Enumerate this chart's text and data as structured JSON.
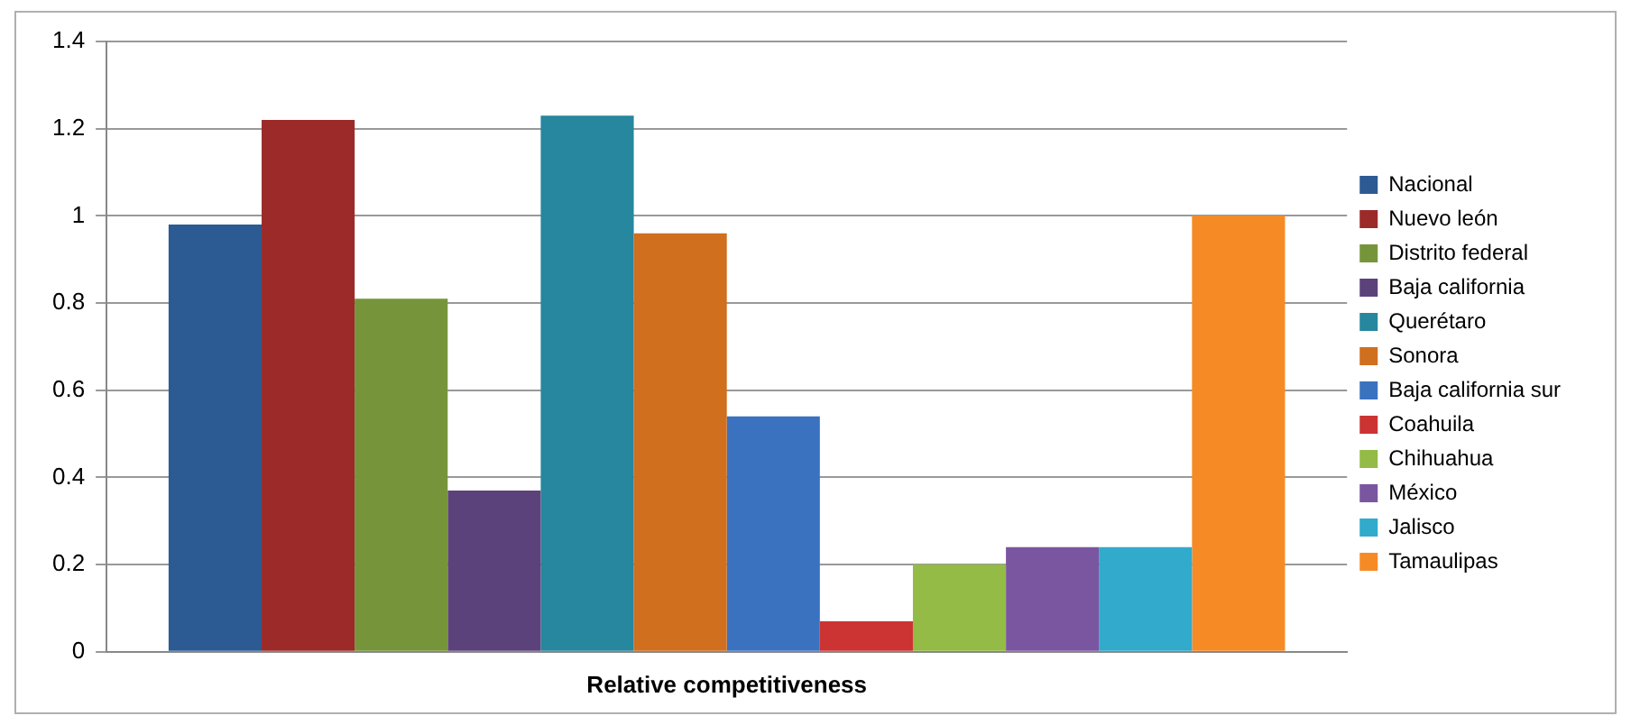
{
  "chart_data": {
    "type": "bar",
    "categories": [
      "Relative competitiveness"
    ],
    "series": [
      {
        "name": "Nacional",
        "color": "#2c5a93",
        "values": [
          0.98
        ]
      },
      {
        "name": "Nuevo león",
        "color": "#9b2a29",
        "values": [
          1.22
        ]
      },
      {
        "name": "Distrito federal",
        "color": "#76953a",
        "values": [
          0.81
        ]
      },
      {
        "name": "Baja california",
        "color": "#5c427a",
        "values": [
          0.37
        ]
      },
      {
        "name": "Querétaro",
        "color": "#26879e",
        "values": [
          1.23
        ]
      },
      {
        "name": "Sonora",
        "color": "#d06f1e",
        "values": [
          0.96
        ]
      },
      {
        "name": "Baja california sur",
        "color": "#3a72c0",
        "values": [
          0.54
        ]
      },
      {
        "name": "Coahuila",
        "color": "#cc3333",
        "values": [
          0.07
        ]
      },
      {
        "name": "Chihuahua",
        "color": "#93bb45",
        "values": [
          0.2
        ]
      },
      {
        "name": "México",
        "color": "#7a55a0",
        "values": [
          0.24
        ]
      },
      {
        "name": "Jalisco",
        "color": "#31aacb",
        "values": [
          0.24
        ]
      },
      {
        "name": "Tamaulipas",
        "color": "#f68b26",
        "values": [
          1.0
        ]
      }
    ],
    "ylim": [
      0,
      1.4
    ],
    "yticks": [
      0,
      0.2,
      0.4,
      0.6,
      0.8,
      1,
      1.2,
      1.4
    ],
    "grid": "y",
    "legend": "right"
  }
}
